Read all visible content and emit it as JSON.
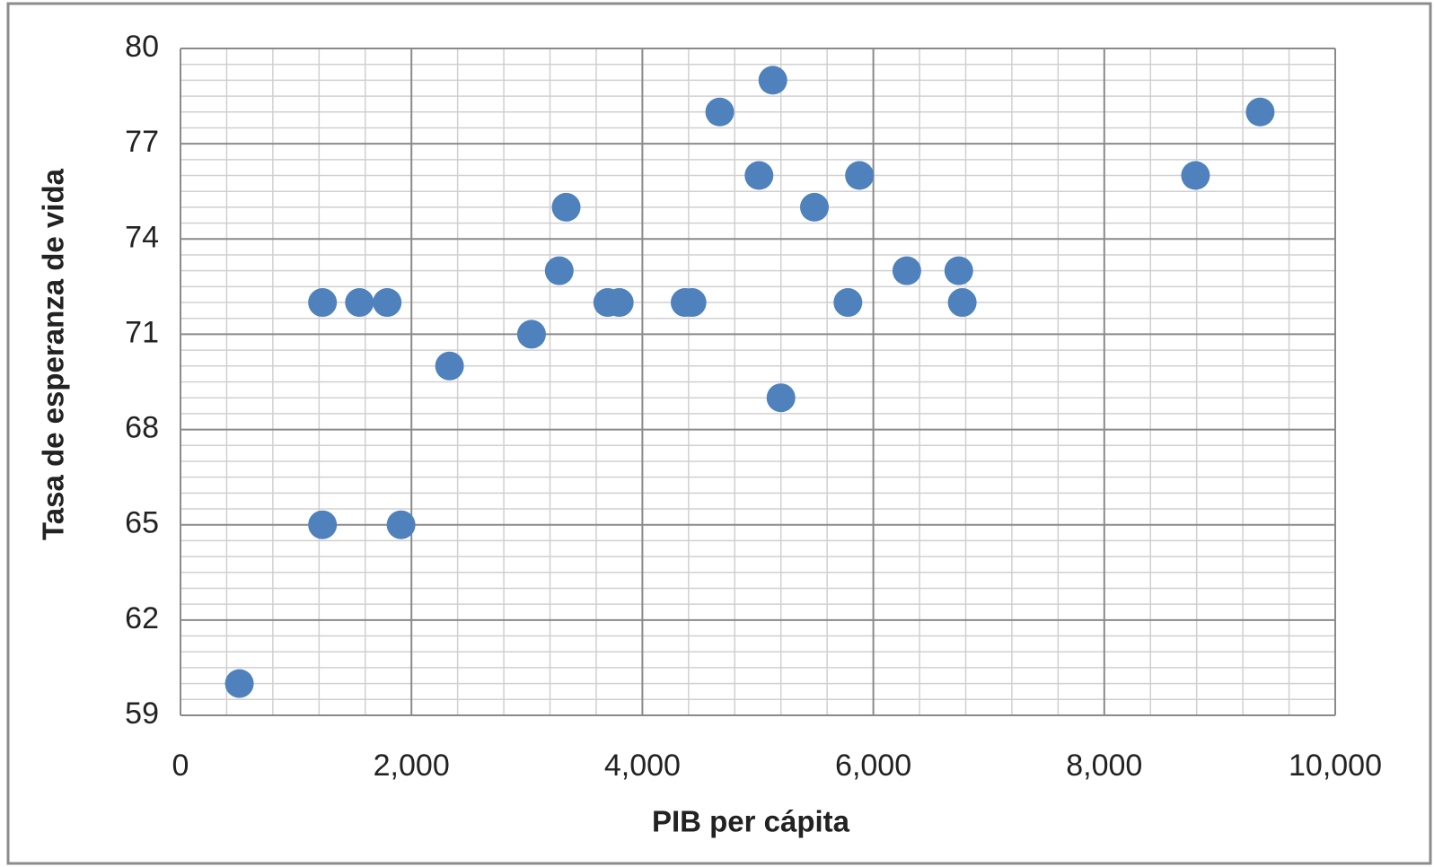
{
  "chart_data": {
    "type": "scatter",
    "x_label": "PIB per cápita",
    "y_label": "Tasa de esperanza  de vida",
    "series": [
      {
        "color": "#4f81bd",
        "x": [
          510,
          1230,
          1230,
          1550,
          1790,
          1910,
          2330,
          3040,
          3280,
          3340,
          3700,
          3800,
          4370,
          4430,
          4670,
          5010,
          5130,
          5200,
          5490,
          5780,
          5880,
          6290,
          6740,
          6770,
          8790,
          9350
        ],
        "values": [
          60,
          72,
          65,
          72,
          72,
          65,
          70,
          71,
          73,
          75,
          72,
          72,
          72,
          72,
          78,
          76,
          79,
          69,
          75,
          72,
          76,
          73,
          73,
          72,
          76,
          78
        ]
      }
    ],
    "xlim": [
      0,
      10000
    ],
    "xticks": [
      0,
      {
        "value": 2000,
        "label": "2,000"
      },
      {
        "value": 4000,
        "label": "4,000"
      },
      {
        "value": 6000,
        "label": "6,000"
      },
      {
        "value": 8000,
        "label": "8,000"
      },
      {
        "value": 10000,
        "label": "10,000"
      }
    ],
    "ylim": [
      59,
      80
    ],
    "yticks": [
      59,
      62,
      65,
      68,
      71,
      74,
      77,
      80
    ],
    "grid": true
  }
}
